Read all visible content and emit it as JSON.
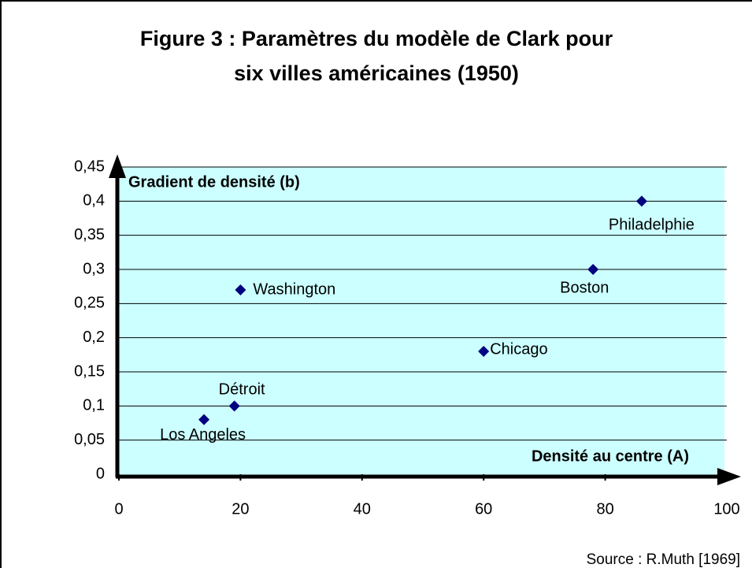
{
  "chart_data": {
    "type": "scatter",
    "title": "Figure 3 : Paramètres du modèle de Clark pour",
    "title_line2": "six villes américaines (1950)",
    "y_label": "Gradient de densité (b)",
    "x_label": "Densité au centre (A)",
    "source": "Source : R.Muth [1969]",
    "labels": [
      "Philadelphie",
      "Boston",
      "Washington",
      "Chicago",
      "Détroit",
      "Los Angeles"
    ],
    "x": [
      86,
      78,
      20,
      60,
      19,
      14
    ],
    "values": [
      0.4,
      0.3,
      0.27,
      0.18,
      0.1,
      0.08
    ],
    "color": "#000080",
    "plot_background": "#ccffff",
    "grid": true,
    "xlim": [
      0,
      100
    ],
    "xticks": [
      0,
      20,
      40,
      60,
      80,
      100
    ],
    "ylim": [
      0,
      0.45
    ],
    "yticks": [
      0,
      {
        "value": 0.05,
        "label": "0,05"
      },
      {
        "value": 0.1,
        "label": "0,1"
      },
      {
        "value": 0.15,
        "label": "0,15"
      },
      {
        "value": 0.2,
        "label": "0,2"
      },
      {
        "value": 0.25,
        "label": "0,25"
      },
      {
        "value": 0.3,
        "label": "0,3"
      },
      {
        "value": 0.35,
        "label": "0,35"
      },
      {
        "value": 0.4,
        "label": "0,4"
      },
      {
        "value": 0.45,
        "label": "0,45"
      }
    ]
  }
}
